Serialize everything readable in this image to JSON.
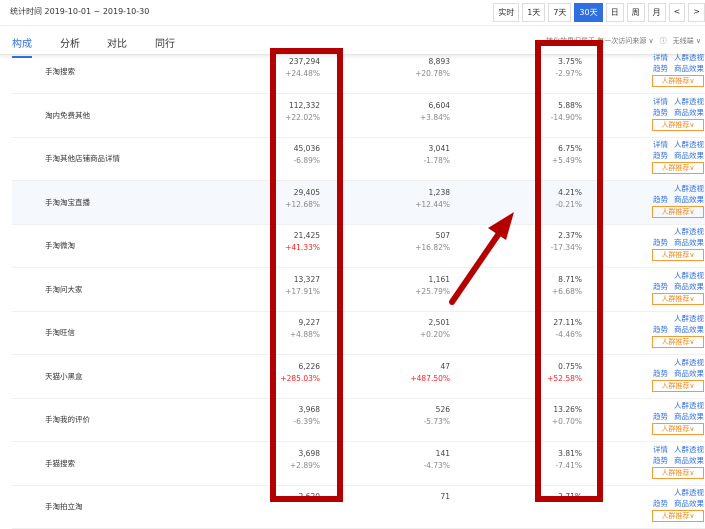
{
  "header": {
    "stat_range": "统计时间 2019-10-01 ~ 2019-10-30",
    "buttons": [
      "实时",
      "1天",
      "7天",
      "30天",
      "日",
      "周",
      "月",
      "<",
      ">"
    ],
    "active": "30天"
  },
  "tabs": [
    "构成",
    "分析",
    "对比",
    "同行"
  ],
  "filters": {
    "attribution": "转化效果归属于 每一次访问来源",
    "attribution_arrow": "∨",
    "info": "ⓘ",
    "device": "无线端",
    "device_arrow": "∨"
  },
  "actions": {
    "detail": "详情",
    "crowd": "人群透视",
    "trend": "趋势",
    "goods": "商品效果",
    "recommend": "人群推荐∨"
  },
  "accent": "#2f6fe0",
  "annotation_color": "#b50000",
  "rows": [
    {
      "name": "手淘搜索",
      "c1": "237,294",
      "d1": "+24.48%",
      "c2": "8,893",
      "d2": "+20.78%",
      "c3": "3.75%",
      "d3": "-2.97%",
      "detail": true
    },
    {
      "name": "淘内免费其他",
      "c1": "112,332",
      "d1": "+22.02%",
      "c2": "6,604",
      "d2": "+3.84%",
      "c3": "5.88%",
      "d3": "-14.90%",
      "detail": true
    },
    {
      "name": "手淘其他店铺商品详情",
      "c1": "45,036",
      "d1": "-6.89%",
      "c2": "3,041",
      "d2": "-1.78%",
      "c3": "6.75%",
      "d3": "+5.49%",
      "detail": true
    },
    {
      "name": "手淘淘宝直播",
      "c1": "29,405",
      "d1": "+12.68%",
      "c2": "1,238",
      "d2": "+12.44%",
      "c3": "4.21%",
      "d3": "-0.21%",
      "detail": false
    },
    {
      "name": "手淘微淘",
      "c1": "21,425",
      "d1": "+41.33%",
      "d1_up": true,
      "c2": "507",
      "d2": "+16.82%",
      "c3": "2.37%",
      "d3": "-17.34%",
      "detail": false
    },
    {
      "name": "手淘问大家",
      "c1": "13,327",
      "d1": "+17.91%",
      "c2": "1,161",
      "d2": "+25.79%",
      "c3": "8.71%",
      "d3": "+6.68%",
      "detail": false
    },
    {
      "name": "手淘旺信",
      "c1": "9,227",
      "d1": "+4.88%",
      "c2": "2,501",
      "d2": "+0.20%",
      "c3": "27.11%",
      "d3": "-4.46%",
      "detail": false
    },
    {
      "name": "天猫小黑盒",
      "c1": "6,226",
      "d1": "+285.03%",
      "d1_up": true,
      "c2": "47",
      "d2": "+487.50%",
      "d2_up": true,
      "c3": "0.75%",
      "d3": "+52.58%",
      "d3_up": true,
      "detail": false
    },
    {
      "name": "手淘我的评价",
      "c1": "3,968",
      "d1": "-6.39%",
      "c2": "526",
      "d2": "-5.73%",
      "c3": "13.26%",
      "d3": "+0.70%",
      "detail": false
    },
    {
      "name": "手猫搜索",
      "c1": "3,698",
      "d1": "+2.89%",
      "c2": "141",
      "d2": "-4.73%",
      "c3": "3.81%",
      "d3": "-7.41%",
      "detail": true
    },
    {
      "name": "手淘拍立淘",
      "c1": "2,620",
      "d1": "",
      "c2": "71",
      "d2": "",
      "c3": "2.71%",
      "d3": "",
      "detail": false
    }
  ]
}
